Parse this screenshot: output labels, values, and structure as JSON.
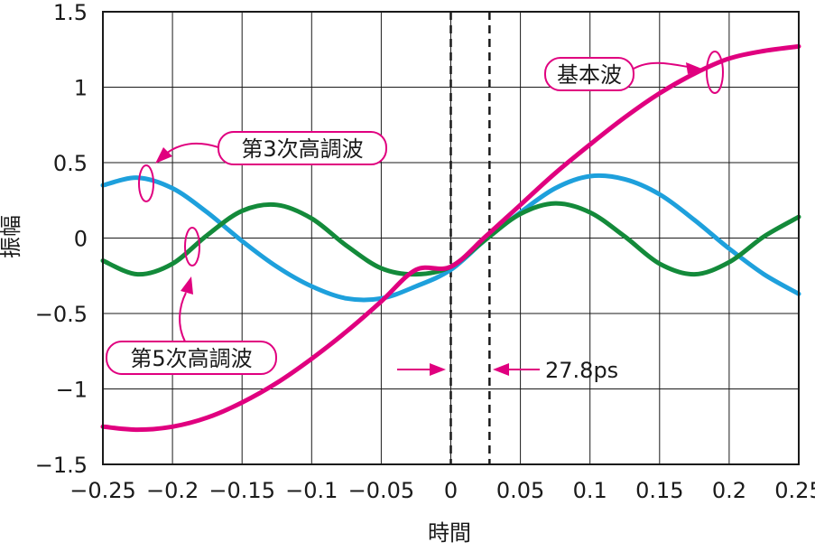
{
  "chart_data": {
    "type": "line",
    "xlabel": "時間",
    "ylabel": "振幅",
    "xlim": [
      -0.25,
      0.25
    ],
    "ylim": [
      -1.5,
      1.5
    ],
    "grid": true,
    "x_ticks": [
      "−0.25",
      "−0.2",
      "−0.15",
      "−0.1",
      "−0.05",
      "0",
      "0.05",
      "0.1",
      "0.15",
      "0.2",
      "0.25"
    ],
    "y_ticks": [
      "1.5",
      "1",
      "0.5",
      "0",
      "−0.5",
      "−1",
      "−1.5"
    ],
    "x": [
      -0.25,
      -0.225,
      -0.2,
      -0.175,
      -0.15,
      -0.125,
      -0.1,
      -0.075,
      -0.05,
      -0.025,
      0,
      0.025,
      0.05,
      0.075,
      0.1,
      0.125,
      0.15,
      0.175,
      0.2,
      0.225,
      0.25
    ],
    "series": [
      {
        "name": "基本波",
        "color": "#e0007f",
        "values": [
          -1.25,
          -1.27,
          -1.25,
          -1.19,
          -1.09,
          -0.96,
          -0.8,
          -0.62,
          -0.42,
          -0.21,
          -0.19,
          0.01,
          0.22,
          0.43,
          0.62,
          0.8,
          0.96,
          1.09,
          1.19,
          1.24,
          1.27
        ]
      },
      {
        "name": "第3次高調波",
        "color": "#1ea0dc",
        "values": [
          0.35,
          0.4,
          0.33,
          0.17,
          -0.02,
          -0.19,
          -0.32,
          -0.4,
          -0.4,
          -0.32,
          -0.21,
          -0.01,
          0.17,
          0.33,
          0.41,
          0.39,
          0.29,
          0.12,
          -0.07,
          -0.24,
          -0.37
        ]
      },
      {
        "name": "第5次高調波",
        "color": "#138a3a",
        "values": [
          -0.15,
          -0.24,
          -0.17,
          0.02,
          0.18,
          0.22,
          0.13,
          -0.05,
          -0.2,
          -0.24,
          -0.19,
          -0.01,
          0.16,
          0.23,
          0.17,
          0.01,
          -0.17,
          -0.24,
          -0.16,
          0.01,
          0.14
        ]
      }
    ],
    "markers": [
      {
        "x": 0,
        "style": "dashed"
      },
      {
        "x": 0.0278,
        "style": "dashed"
      }
    ],
    "annotations": {
      "fundamental_label": "基本波",
      "third_label": "第3次高調波",
      "fifth_label": "第5次高調波",
      "delay_label": "27.8ps"
    }
  }
}
